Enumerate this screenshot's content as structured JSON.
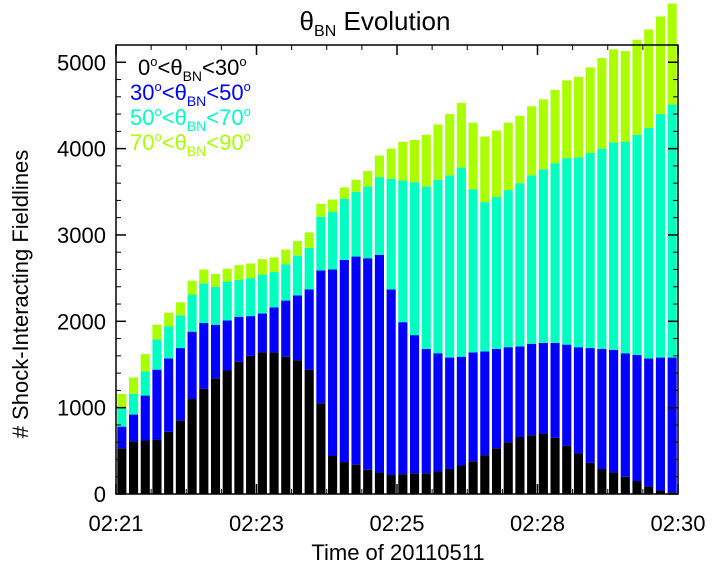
{
  "chart_data": {
    "type": "bar",
    "stacked": true,
    "title": {
      "symbol": "θ",
      "sub": "BN",
      "rest": " Evolution"
    },
    "xlabel": "Time of 20110511",
    "ylabel": "# Shock-Interacting Fieldlines",
    "x_tick_labels": [
      "02:21",
      "02:23",
      "02:25",
      "02:28",
      "02:30"
    ],
    "y_ticks": [
      0,
      1000,
      2000,
      3000,
      4000,
      5000
    ],
    "ylim": [
      0,
      5200
    ],
    "grid": false,
    "legend_position": "top-left",
    "legend": [
      {
        "pre": "0",
        "mid": "<θ",
        "sub": "BN",
        "post": "<30",
        "color": "#000000"
      },
      {
        "pre": "30",
        "mid": "<θ",
        "sub": "BN",
        "post": "<50",
        "color": "#0000ff"
      },
      {
        "pre": "50",
        "mid": "<θ",
        "sub": "BN",
        "post": "<70",
        "color": "#00ffc0"
      },
      {
        "pre": "70",
        "mid": "<θ",
        "sub": "BN",
        "post": "<90",
        "color": "#aaff00"
      }
    ],
    "series": [
      {
        "color": "#000000",
        "values": [
          530,
          610,
          620,
          630,
          720,
          850,
          1100,
          1220,
          1340,
          1430,
          1530,
          1600,
          1640,
          1640,
          1590,
          1550,
          1440,
          1050,
          440,
          370,
          340,
          280,
          250,
          220,
          230,
          240,
          240,
          260,
          290,
          330,
          380,
          450,
          530,
          600,
          660,
          680,
          700,
          650,
          560,
          470,
          360,
          290,
          250,
          200,
          150,
          90,
          40,
          20
        ]
      },
      {
        "color": "#0000ff",
        "values": [
          250,
          310,
          520,
          810,
          850,
          840,
          780,
          760,
          620,
          580,
          520,
          460,
          450,
          520,
          650,
          750,
          930,
          1540,
          2160,
          2340,
          2410,
          2450,
          2520,
          2150,
          1760,
          1600,
          1440,
          1370,
          1290,
          1260,
          1260,
          1200,
          1150,
          1100,
          1050,
          1060,
          1050,
          1100,
          1170,
          1230,
          1330,
          1390,
          1420,
          1430,
          1460,
          1480,
          1540,
          1560
        ]
      },
      {
        "color": "#00ffc0",
        "values": [
          210,
          240,
          280,
          350,
          370,
          380,
          430,
          460,
          440,
          450,
          430,
          440,
          450,
          410,
          420,
          460,
          480,
          620,
          670,
          710,
          750,
          830,
          900,
          1280,
          1640,
          1770,
          1880,
          2010,
          2110,
          2190,
          1890,
          1730,
          1760,
          1820,
          1890,
          1950,
          2010,
          2080,
          2160,
          2200,
          2260,
          2320,
          2400,
          2450,
          2550,
          2670,
          2820,
          2930
        ]
      },
      {
        "color": "#aaff00",
        "values": [
          170,
          190,
          200,
          170,
          160,
          150,
          160,
          160,
          150,
          150,
          170,
          170,
          180,
          170,
          170,
          170,
          180,
          150,
          140,
          130,
          140,
          180,
          250,
          350,
          450,
          490,
          600,
          640,
          710,
          750,
          770,
          760,
          770,
          780,
          780,
          800,
          810,
          850,
          900,
          930,
          990,
          1050,
          1080,
          1050,
          1100,
          1140,
          1130,
          1170
        ]
      }
    ]
  }
}
